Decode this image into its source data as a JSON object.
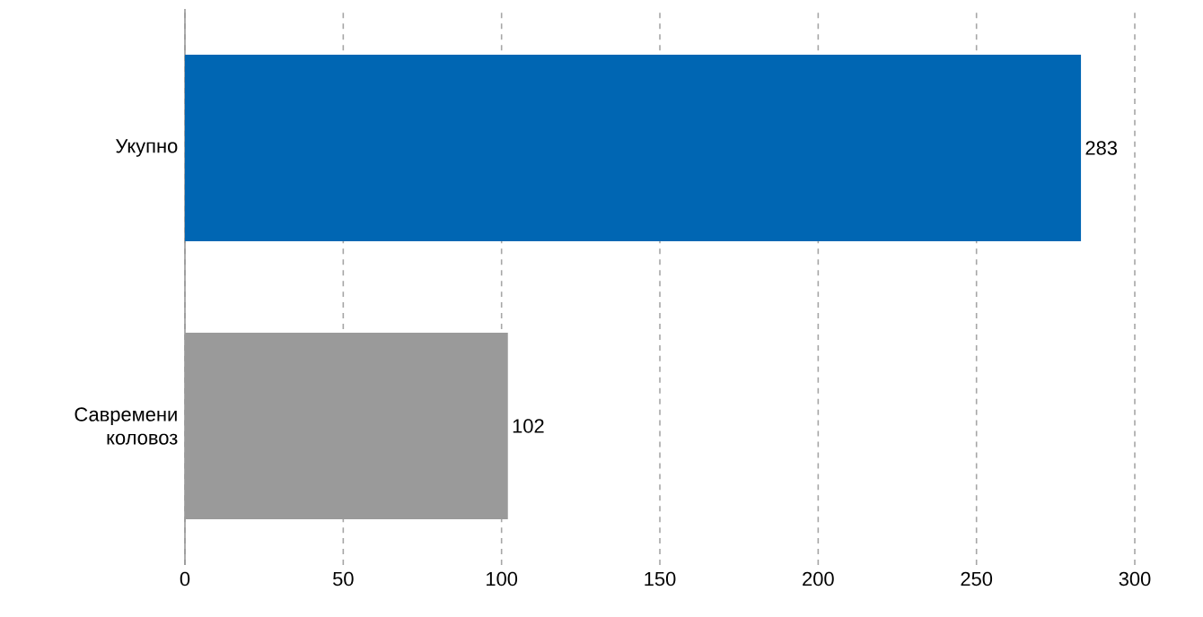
{
  "chart_data": {
    "type": "bar",
    "orientation": "horizontal",
    "categories": [
      "Укупно",
      "Савремени коловоз"
    ],
    "values": [
      283,
      102
    ],
    "colors": [
      "#0066b3",
      "#9a9a9a"
    ],
    "xlim": [
      0,
      300
    ],
    "xticks": [
      0,
      50,
      100,
      150,
      200,
      250,
      300
    ],
    "grid": "x",
    "data_labels": true
  }
}
